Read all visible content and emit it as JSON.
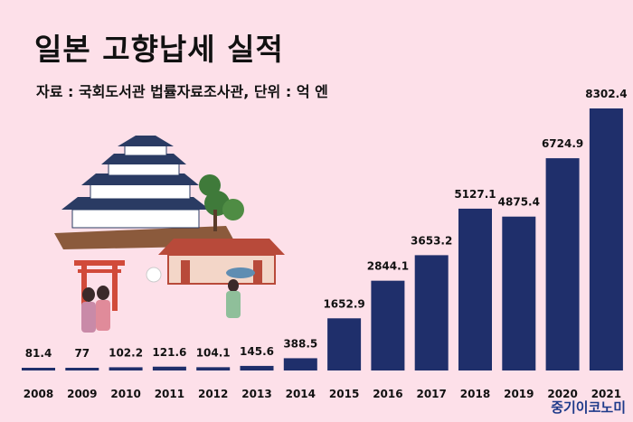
{
  "header": {
    "title": "일본 고향납세 실적",
    "subtitle": "자료 : 국회도서관 법률자료조사관, 단위 : 억 엔"
  },
  "watermark": "중기이코노미",
  "colors": {
    "background": "#fde0e9",
    "bar": "#1f2f6b"
  },
  "chart_data": {
    "type": "bar",
    "title": "일본 고향납세 실적",
    "subtitle": "자료 : 국회도서관 법률자료조사관, 단위 : 억 엔",
    "categories": [
      "2008",
      "2009",
      "2010",
      "2011",
      "2012",
      "2013",
      "2014",
      "2015",
      "2016",
      "2017",
      "2018",
      "2019",
      "2020",
      "2021"
    ],
    "values": [
      81.4,
      77,
      102.2,
      121.6,
      104.1,
      145.6,
      388.5,
      1652.9,
      2844.1,
      3653.2,
      5127.1,
      4875.4,
      6724.9,
      8302.4
    ],
    "value_labels": [
      "81.4",
      "77",
      "102.2",
      "121.6",
      "104.1",
      "145.6",
      "388.5",
      "1652.9",
      "2844.1",
      "3653.2",
      "5127.1",
      "4875.4",
      "6724.9",
      "8302.4"
    ],
    "ylim": [
      0,
      8302.4
    ],
    "grid": false,
    "legend": "none"
  }
}
